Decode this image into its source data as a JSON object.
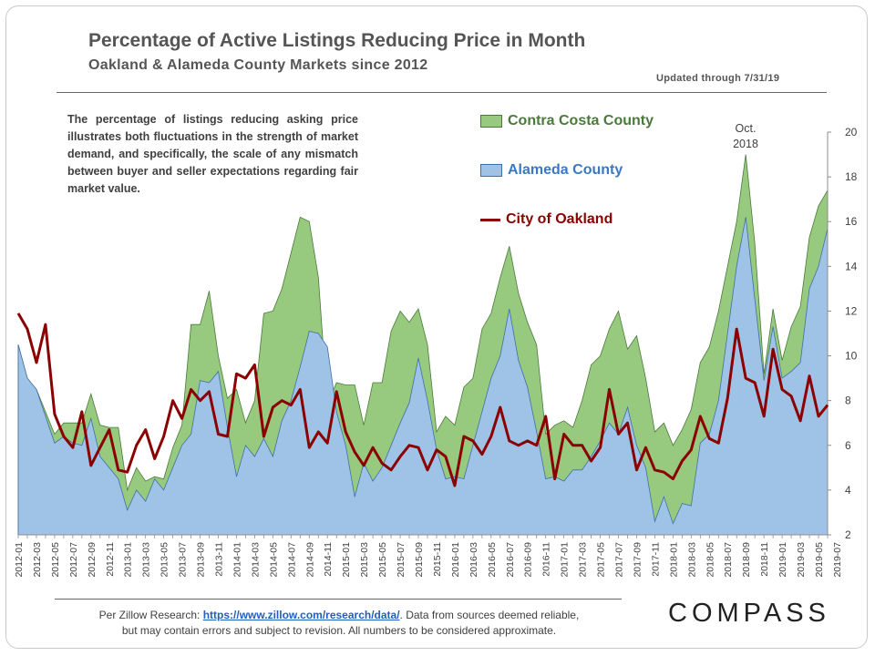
{
  "chart_data": {
    "type": "area",
    "title": "Percentage of Active Listings Reducing Price in Month",
    "subtitle": "Oakland  & Alameda County Markets  since 2012",
    "updated": "Updated through 7/31/19",
    "description": "The percentage of listings reducing asking price illustrates both fluctuations in the strength of market demand, and specifically, the scale of any mismatch between buyer and seller expectations regarding fair market value.",
    "annotation": {
      "text": [
        "Oct.",
        "2018"
      ],
      "x": "2018-10"
    },
    "ylim": [
      2,
      20
    ],
    "yticks": [
      2,
      4,
      6,
      8,
      10,
      12,
      14,
      16,
      18,
      20
    ],
    "xticks": [
      "2012-01",
      "2012-03",
      "2012-05",
      "2012-07",
      "2012-09",
      "2012-11",
      "2013-01",
      "2013-03",
      "2013-05",
      "2013-07",
      "2013-09",
      "2013-11",
      "2014-01",
      "2014-03",
      "2014-05",
      "2014-07",
      "2014-09",
      "2014-11",
      "2015-01",
      "2015-03",
      "2015-05",
      "2015-07",
      "2015-09",
      "2015-11",
      "2016-01",
      "2016-03",
      "2016-05",
      "2016-07",
      "2016-09",
      "2016-11",
      "2017-01",
      "2017-03",
      "2017-05",
      "2017-07",
      "2017-09",
      "2017-11",
      "2018-01",
      "2018-03",
      "2018-05",
      "2018-07",
      "2018-09",
      "2018-11",
      "2019-01",
      "2019-03",
      "2019-05",
      "2019-07"
    ],
    "series": [
      {
        "name": "Contra Costa County",
        "color": "#97c97f",
        "stroke": "#4a7a3a",
        "kind": "area",
        "values": [
          10.5,
          9.0,
          8.5,
          7.5,
          6.5,
          7.0,
          7.0,
          7.0,
          8.3,
          6.9,
          6.8,
          6.8,
          4.0,
          5.0,
          4.4,
          4.6,
          4.5,
          5.9,
          6.9,
          11.4,
          11.4,
          12.9,
          10.0,
          8.1,
          8.5,
          7.0,
          8.0,
          11.9,
          12.0,
          13.0,
          14.6,
          16.2,
          16.0,
          13.5,
          7.8,
          8.8,
          8.7,
          8.7,
          6.9,
          8.8,
          8.8,
          11.1,
          12.0,
          11.5,
          12.1,
          10.5,
          6.6,
          7.3,
          6.9,
          8.6,
          9.0,
          11.2,
          11.9,
          13.5,
          14.9,
          12.8,
          11.5,
          10.5,
          6.5,
          6.9,
          7.1,
          6.8,
          8.0,
          9.6,
          10.0,
          11.2,
          12.0,
          10.3,
          10.9,
          9.0,
          6.6,
          7.0,
          6.0,
          6.7,
          7.6,
          9.7,
          10.4,
          12.0,
          14.0,
          16.0,
          19.0,
          15.0,
          9.2,
          12.1,
          9.8,
          11.3,
          12.2,
          15.3,
          16.7,
          17.4
        ]
      },
      {
        "name": "Alameda County",
        "color": "#9fc3e6",
        "stroke": "#3f6fa8",
        "kind": "area",
        "values": [
          10.5,
          9.0,
          8.5,
          7.3,
          6.1,
          6.4,
          6.1,
          6.0,
          7.2,
          5.5,
          5.0,
          4.5,
          3.1,
          4.0,
          3.5,
          4.5,
          4.0,
          5.0,
          6.0,
          6.5,
          8.9,
          8.8,
          9.3,
          6.8,
          4.6,
          6.0,
          5.5,
          6.3,
          5.5,
          7.1,
          8.0,
          9.5,
          11.1,
          11.0,
          10.4,
          7.5,
          6.0,
          3.7,
          5.2,
          4.4,
          5.0,
          6.0,
          7.0,
          7.9,
          9.9,
          8.0,
          5.8,
          4.5,
          4.6,
          4.5,
          6.0,
          7.5,
          9.0,
          10.0,
          12.1,
          9.8,
          8.6,
          6.6,
          4.5,
          4.6,
          4.4,
          4.9,
          4.9,
          5.5,
          6.2,
          7.0,
          6.5,
          7.7,
          6.0,
          5.0,
          2.6,
          3.7,
          2.5,
          3.4,
          3.3,
          6.1,
          6.5,
          8.0,
          11.0,
          14.0,
          16.2,
          12.5,
          8.9,
          11.3,
          9.0,
          9.3,
          9.7,
          13.0,
          14.0,
          15.7
        ]
      },
      {
        "name": "City of Oakland",
        "color": "#8b0000",
        "kind": "line",
        "values": [
          11.9,
          11.2,
          9.7,
          11.4,
          7.4,
          6.4,
          5.9,
          7.5,
          5.1,
          5.9,
          6.7,
          4.9,
          4.8,
          6.0,
          6.7,
          5.4,
          6.4,
          8.0,
          7.2,
          8.5,
          8.0,
          8.4,
          6.5,
          6.4,
          9.2,
          9.0,
          9.6,
          6.4,
          7.7,
          8.0,
          7.8,
          8.5,
          5.9,
          6.6,
          6.1,
          8.4,
          6.6,
          5.7,
          5.1,
          5.9,
          5.2,
          4.9,
          5.5,
          6.0,
          5.9,
          4.9,
          5.8,
          5.5,
          4.2,
          6.4,
          6.2,
          5.6,
          6.4,
          7.7,
          6.2,
          6.0,
          6.2,
          6.0,
          7.3,
          4.5,
          6.5,
          6.0,
          6.0,
          5.3,
          5.9,
          8.5,
          6.5,
          7.0,
          4.9,
          5.9,
          4.9,
          4.8,
          4.5,
          5.3,
          5.8,
          7.3,
          6.3,
          6.1,
          8.1,
          11.2,
          9.0,
          8.8,
          7.3,
          10.3,
          8.5,
          8.2,
          7.1,
          9.1,
          7.3,
          7.8
        ]
      }
    ]
  },
  "footer": {
    "prefix": "Per Zillow Research: ",
    "link": "https://www.zillow.com/research/data/",
    "suffix": ". Data from sources deemed reliable,",
    "line2": "but may contain errors and subject to revision.  All numbers to be considered approximate."
  },
  "brand": "COMPASS"
}
